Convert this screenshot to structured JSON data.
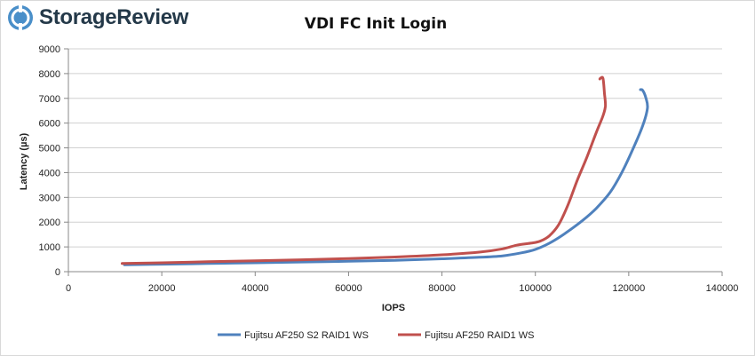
{
  "brand": {
    "name": "StorageReview",
    "logo_icon": "storagereview-logo-icon",
    "accent": "#4a8fc9"
  },
  "chart_data": {
    "type": "line",
    "title": "VDI FC Init Login",
    "xlabel": "IOPS",
    "ylabel": "Latency (µs)",
    "xlim": [
      0,
      140000
    ],
    "ylim": [
      0,
      9000
    ],
    "x_ticks": [
      "0",
      "20000",
      "40000",
      "60000",
      "80000",
      "100000",
      "120000",
      "140000"
    ],
    "y_ticks": [
      "0",
      "1000",
      "2000",
      "3000",
      "4000",
      "5000",
      "6000",
      "7000",
      "8000",
      "9000"
    ],
    "grid": "horizontal",
    "legend_position": "bottom",
    "series": [
      {
        "name": "Fujitsu AF250 S2 RAID1 WS",
        "color": "#4f81bd",
        "points": [
          [
            12000,
            280
          ],
          [
            20000,
            300
          ],
          [
            30000,
            330
          ],
          [
            40000,
            360
          ],
          [
            50000,
            390
          ],
          [
            60000,
            420
          ],
          [
            70000,
            460
          ],
          [
            80000,
            520
          ],
          [
            88000,
            580
          ],
          [
            93000,
            640
          ],
          [
            97000,
            760
          ],
          [
            100000,
            900
          ],
          [
            103000,
            1150
          ],
          [
            106000,
            1500
          ],
          [
            110000,
            2050
          ],
          [
            113000,
            2550
          ],
          [
            116000,
            3200
          ],
          [
            118500,
            4000
          ],
          [
            121000,
            5000
          ],
          [
            123000,
            5900
          ],
          [
            124000,
            6600
          ],
          [
            123700,
            7000
          ],
          [
            123000,
            7320
          ],
          [
            122500,
            7350
          ]
        ]
      },
      {
        "name": "Fujitsu AF250 RAID1 WS",
        "color": "#c0504d",
        "points": [
          [
            11500,
            330
          ],
          [
            20000,
            360
          ],
          [
            30000,
            400
          ],
          [
            40000,
            440
          ],
          [
            50000,
            480
          ],
          [
            60000,
            530
          ],
          [
            70000,
            590
          ],
          [
            80000,
            680
          ],
          [
            88000,
            790
          ],
          [
            93000,
            920
          ],
          [
            96000,
            1070
          ],
          [
            99000,
            1150
          ],
          [
            101000,
            1230
          ],
          [
            103000,
            1450
          ],
          [
            105000,
            1900
          ],
          [
            107000,
            2700
          ],
          [
            109000,
            3700
          ],
          [
            111000,
            4600
          ],
          [
            113000,
            5600
          ],
          [
            114500,
            6300
          ],
          [
            115000,
            6700
          ],
          [
            114800,
            7200
          ],
          [
            114500,
            7800
          ],
          [
            114000,
            7820
          ],
          [
            113800,
            7780
          ]
        ]
      }
    ]
  }
}
